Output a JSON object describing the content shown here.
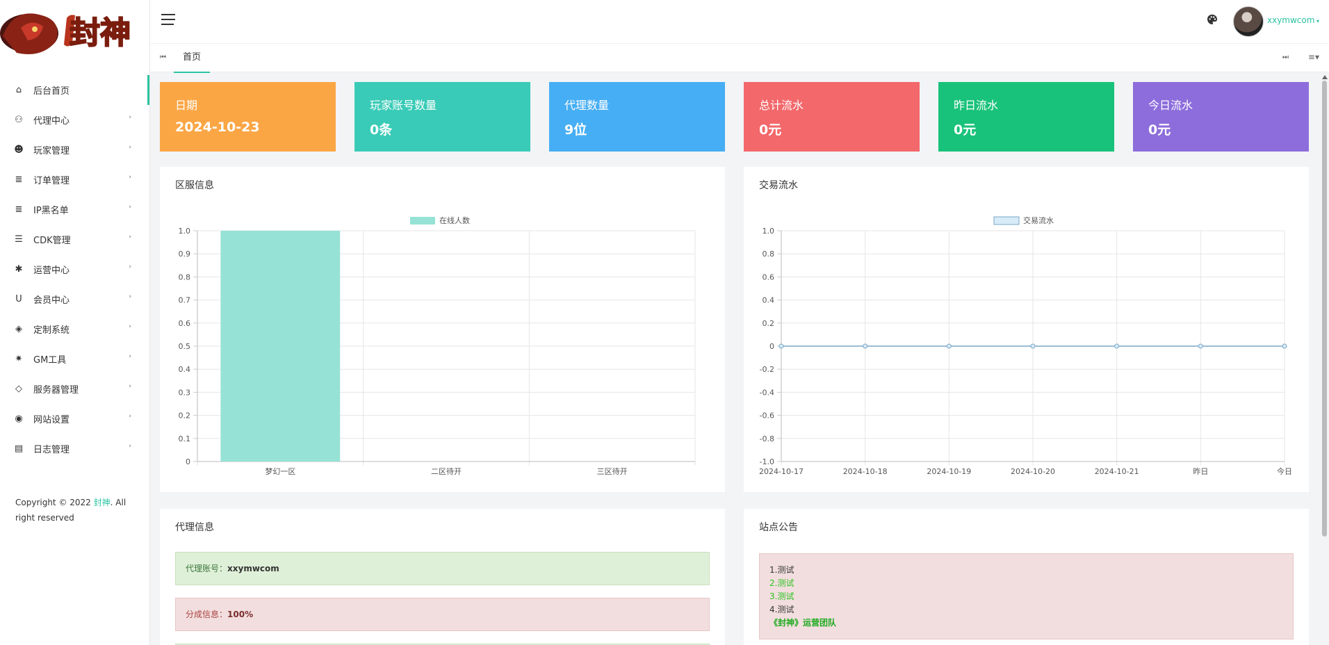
{
  "logo": {
    "text": "封神"
  },
  "sidebar": {
    "items": [
      {
        "label": "后台首页",
        "icon": "home-icon",
        "active": true
      },
      {
        "label": "代理中心",
        "icon": "users-outline-icon"
      },
      {
        "label": "玩家管理",
        "icon": "users-icon"
      },
      {
        "label": "订单管理",
        "icon": "database-icon"
      },
      {
        "label": "IP黑名单",
        "icon": "database-plus-icon"
      },
      {
        "label": "CDK管理",
        "icon": "list-icon"
      },
      {
        "label": "运营中心",
        "icon": "gear-icon"
      },
      {
        "label": "会员中心",
        "icon": "magnet-icon"
      },
      {
        "label": "定制系统",
        "icon": "diamond-grid-icon"
      },
      {
        "label": "GM工具",
        "icon": "bug-icon"
      },
      {
        "label": "服务器管理",
        "icon": "gem-icon"
      },
      {
        "label": "网站设置",
        "icon": "globe-icon"
      },
      {
        "label": "日志管理",
        "icon": "message-icon"
      }
    ],
    "copyright_prefix": "Copyright © 2022 ",
    "copyright_brand": "封神",
    "copyright_suffix": ". All right reserved"
  },
  "header": {
    "username": "xxymwcom",
    "tab_home": "首页"
  },
  "stats": [
    {
      "label": "日期",
      "value": "2024-10-23",
      "color": "#fba645"
    },
    {
      "label": "玩家账号数量",
      "value": "0条",
      "color": "#39cbb7"
    },
    {
      "label": "代理数量",
      "value": "9位",
      "color": "#46aef4"
    },
    {
      "label": "总计流水",
      "value": "0元",
      "color": "#f3686b"
    },
    {
      "label": "昨日流水",
      "value": "0元",
      "color": "#19c27a"
    },
    {
      "label": "今日流水",
      "value": "0元",
      "color": "#8d6ddb"
    }
  ],
  "panels": {
    "server_title": "区服信息",
    "trade_title": "交易流水",
    "agent_title": "代理信息",
    "notice_title": "站点公告"
  },
  "agent_info": {
    "account_label": "代理账号：",
    "account_value": "xxymwcom",
    "share_label": "分成信息：",
    "share_value": "100%"
  },
  "notice": {
    "lines": [
      "1.测试",
      "2.测试",
      "3.测试",
      "4.测试"
    ],
    "signature": "《封神》运营团队"
  },
  "chart_data": [
    {
      "type": "bar",
      "categories": [
        "梦幻一区",
        "二区待开",
        "三区待开"
      ],
      "series": [
        {
          "name": "在线人数",
          "values": [
            1,
            0,
            0
          ]
        }
      ],
      "ylim": [
        0,
        1.0
      ],
      "yticks": [
        "0",
        "0.1",
        "0.2",
        "0.3",
        "0.4",
        "0.5",
        "0.6",
        "0.7",
        "0.8",
        "0.9",
        "1.0"
      ],
      "legend": "top-center",
      "grid": true,
      "color": "#96e2d6"
    },
    {
      "type": "line",
      "categories": [
        "2024-10-17",
        "2024-10-18",
        "2024-10-19",
        "2024-10-20",
        "2024-10-21",
        "昨日",
        "今日"
      ],
      "series": [
        {
          "name": "交易流水",
          "values": [
            0,
            0,
            0,
            0,
            0,
            0,
            0
          ]
        }
      ],
      "ylim": [
        -1.0,
        1.0
      ],
      "yticks": [
        "1.0",
        "0.8",
        "0.6",
        "0.4",
        "0.2",
        "0",
        "-0.2",
        "-0.4",
        "-0.6",
        "-0.8",
        "-1.0"
      ],
      "legend": "top-center",
      "grid": true,
      "color": "#7aa7c7"
    }
  ]
}
